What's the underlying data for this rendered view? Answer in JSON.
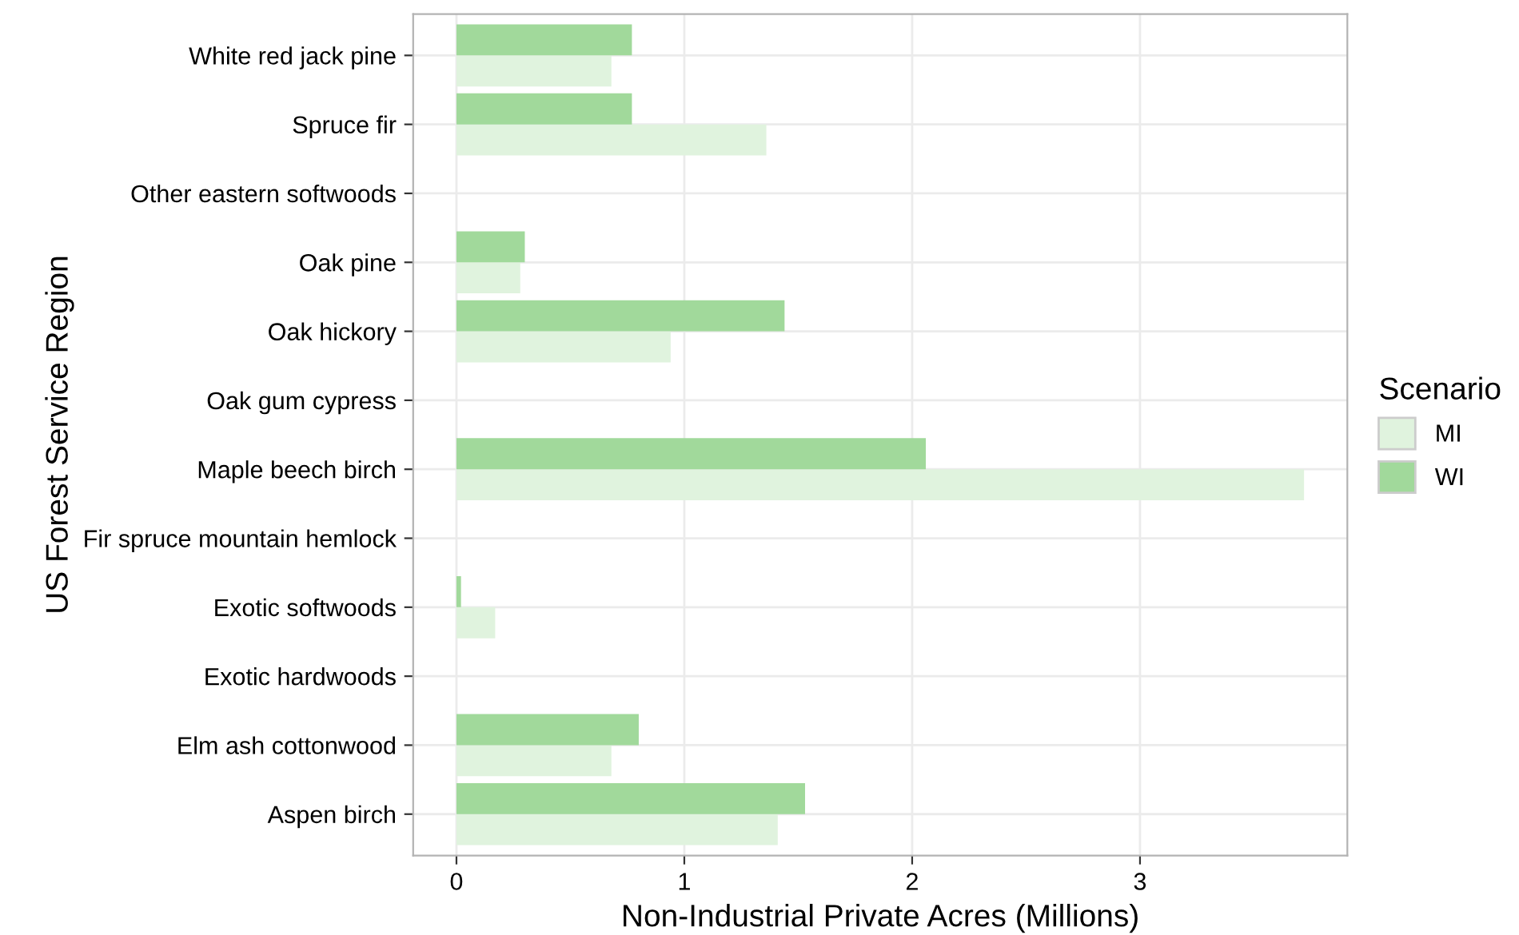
{
  "chart_data": {
    "type": "bar",
    "orientation": "horizontal",
    "xlabel": "Non-Industrial Private Acres (Millions)",
    "ylabel": "US Forest Service Region",
    "legend_title": "Scenario",
    "legend": "right",
    "categories": [
      "White red jack pine",
      "Spruce fir",
      "Other eastern softwoods",
      "Oak pine",
      "Oak hickory",
      "Oak gum cypress",
      "Maple beech birch",
      "Fir spruce mountain hemlock",
      "Exotic softwoods",
      "Exotic hardwoods",
      "Elm ash cottonwood",
      "Aspen birch"
    ],
    "series": [
      {
        "name": "MI",
        "color": "#e0f3de",
        "values": [
          0.68,
          1.36,
          0,
          0.28,
          0.94,
          0,
          3.72,
          0,
          0.17,
          0,
          0.68,
          1.41
        ]
      },
      {
        "name": "WI",
        "color": "#a1d99b",
        "values": [
          0.77,
          0.77,
          0,
          0.3,
          1.44,
          0,
          2.06,
          0,
          0.02,
          0,
          0.8,
          1.53
        ]
      }
    ],
    "xlim": [
      -0.19,
      3.91
    ],
    "xticks": [
      0,
      1,
      2,
      3
    ],
    "grid": true
  }
}
